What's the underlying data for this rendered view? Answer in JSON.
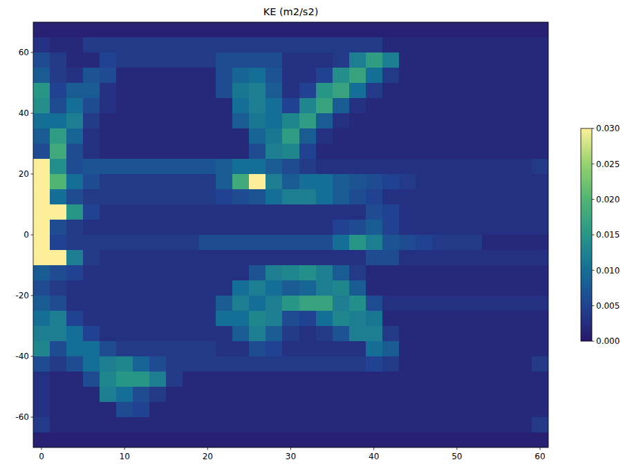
{
  "chart_data": {
    "type": "heatmap",
    "title": "KE (m2/s2)",
    "x": [
      0,
      2,
      4,
      6,
      8,
      10,
      12,
      14,
      16,
      18,
      20,
      22,
      24,
      26,
      28,
      30,
      32,
      34,
      36,
      38,
      40,
      42,
      44,
      46,
      48,
      50,
      52,
      54,
      56,
      58,
      60
    ],
    "y": [
      67.5,
      62.5,
      57.5,
      52.5,
      47.5,
      42.5,
      37.5,
      32.5,
      27.5,
      22.5,
      17.5,
      12.5,
      7.5,
      2.5,
      -2.5,
      -7.5,
      -12.5,
      -17.5,
      -22.5,
      -27.5,
      -32.5,
      -37.5,
      -42.5,
      -47.5,
      -52.5,
      -57.5,
      -62.5,
      -67.5
    ],
    "values": [
      [
        0.001,
        0.001,
        0.001,
        0.001,
        0.001,
        0.001,
        0.001,
        0.001,
        0.001,
        0.001,
        0.001,
        0.001,
        0.001,
        0.001,
        0.001,
        0.001,
        0.001,
        0.001,
        0.001,
        0.001,
        0.001,
        0.001,
        0.001,
        0.001,
        0.001,
        0.001,
        0.001,
        0.001,
        0.001,
        0.001,
        0.001
      ],
      [
        0.003,
        0.002,
        0.002,
        0.004,
        0.004,
        0.004,
        0.004,
        0.004,
        0.004,
        0.004,
        0.004,
        0.004,
        0.004,
        0.004,
        0.004,
        0.004,
        0.004,
        0.004,
        0.004,
        0.004,
        0.004,
        0.002,
        0.002,
        0.002,
        0.002,
        0.002,
        0.002,
        0.002,
        0.002,
        0.002,
        0.002
      ],
      [
        0.006,
        0.004,
        0.002,
        0.002,
        0.005,
        0.004,
        0.004,
        0.004,
        0.004,
        0.004,
        0.004,
        0.006,
        0.006,
        0.006,
        0.006,
        0.003,
        0.003,
        0.003,
        0.004,
        0.012,
        0.016,
        0.012,
        0.002,
        0.002,
        0.002,
        0.002,
        0.002,
        0.002,
        0.002,
        0.002,
        0.002
      ],
      [
        0.008,
        0.004,
        0.003,
        0.007,
        0.006,
        0.002,
        0.002,
        0.002,
        0.002,
        0.002,
        0.002,
        0.006,
        0.009,
        0.01,
        0.007,
        0.003,
        0.003,
        0.005,
        0.014,
        0.017,
        0.01,
        0.004,
        0.002,
        0.002,
        0.002,
        0.002,
        0.002,
        0.002,
        0.002,
        0.002,
        0.002
      ],
      [
        0.015,
        0.005,
        0.008,
        0.008,
        0.003,
        0.002,
        0.002,
        0.002,
        0.002,
        0.002,
        0.002,
        0.006,
        0.011,
        0.012,
        0.008,
        0.003,
        0.005,
        0.015,
        0.017,
        0.01,
        0.004,
        0.002,
        0.002,
        0.002,
        0.002,
        0.002,
        0.002,
        0.002,
        0.002,
        0.002,
        0.002
      ],
      [
        0.014,
        0.006,
        0.01,
        0.006,
        0.003,
        0.002,
        0.002,
        0.002,
        0.002,
        0.002,
        0.002,
        0.002,
        0.01,
        0.012,
        0.01,
        0.005,
        0.013,
        0.017,
        0.008,
        0.003,
        0.002,
        0.002,
        0.002,
        0.002,
        0.002,
        0.002,
        0.002,
        0.002,
        0.002,
        0.002,
        0.002
      ],
      [
        0.01,
        0.01,
        0.012,
        0.004,
        0.002,
        0.002,
        0.002,
        0.002,
        0.002,
        0.002,
        0.002,
        0.002,
        0.008,
        0.011,
        0.01,
        0.013,
        0.016,
        0.008,
        0.003,
        0.002,
        0.002,
        0.002,
        0.002,
        0.002,
        0.002,
        0.002,
        0.002,
        0.002,
        0.002,
        0.002,
        0.002
      ],
      [
        0.008,
        0.016,
        0.009,
        0.003,
        0.002,
        0.002,
        0.002,
        0.002,
        0.002,
        0.002,
        0.002,
        0.002,
        0.002,
        0.009,
        0.011,
        0.016,
        0.008,
        0.003,
        0.002,
        0.002,
        0.002,
        0.002,
        0.002,
        0.002,
        0.002,
        0.002,
        0.002,
        0.002,
        0.002,
        0.002,
        0.002
      ],
      [
        0.006,
        0.018,
        0.006,
        0.003,
        0.002,
        0.002,
        0.002,
        0.002,
        0.002,
        0.002,
        0.002,
        0.002,
        0.002,
        0.006,
        0.012,
        0.013,
        0.005,
        0.002,
        0.002,
        0.002,
        0.002,
        0.002,
        0.002,
        0.002,
        0.002,
        0.002,
        0.002,
        0.002,
        0.002,
        0.002,
        0.002
      ],
      [
        0.03,
        0.014,
        0.006,
        0.007,
        0.007,
        0.007,
        0.007,
        0.007,
        0.007,
        0.007,
        0.007,
        0.008,
        0.01,
        0.01,
        0.008,
        0.006,
        0.004,
        0.003,
        0.003,
        0.003,
        0.003,
        0.003,
        0.003,
        0.003,
        0.003,
        0.003,
        0.003,
        0.003,
        0.003,
        0.003,
        0.004
      ],
      [
        0.03,
        0.02,
        0.01,
        0.006,
        0.004,
        0.004,
        0.004,
        0.004,
        0.004,
        0.004,
        0.004,
        0.008,
        0.018,
        0.03,
        0.012,
        0.008,
        0.01,
        0.01,
        0.008,
        0.007,
        0.006,
        0.005,
        0.004,
        0.003,
        0.003,
        0.003,
        0.003,
        0.003,
        0.003,
        0.003,
        0.003
      ],
      [
        0.03,
        0.01,
        0.006,
        0.004,
        0.004,
        0.004,
        0.004,
        0.004,
        0.004,
        0.004,
        0.004,
        0.005,
        0.006,
        0.007,
        0.01,
        0.012,
        0.012,
        0.01,
        0.008,
        0.006,
        0.005,
        0.003,
        0.003,
        0.003,
        0.003,
        0.003,
        0.003,
        0.003,
        0.003,
        0.003,
        0.003
      ],
      [
        0.03,
        0.03,
        0.015,
        0.005,
        0.003,
        0.003,
        0.003,
        0.003,
        0.003,
        0.003,
        0.003,
        0.003,
        0.003,
        0.003,
        0.003,
        0.003,
        0.003,
        0.003,
        0.003,
        0.003,
        0.006,
        0.005,
        0.003,
        0.003,
        0.003,
        0.003,
        0.003,
        0.003,
        0.003,
        0.003,
        0.003
      ],
      [
        0.03,
        0.006,
        0.004,
        0.003,
        0.003,
        0.003,
        0.003,
        0.003,
        0.003,
        0.003,
        0.003,
        0.003,
        0.003,
        0.003,
        0.003,
        0.003,
        0.003,
        0.003,
        0.005,
        0.006,
        0.008,
        0.005,
        0.003,
        0.003,
        0.003,
        0.003,
        0.003,
        0.003,
        0.003,
        0.003,
        0.003
      ],
      [
        0.03,
        0.005,
        0.004,
        0.004,
        0.004,
        0.004,
        0.004,
        0.004,
        0.004,
        0.004,
        0.006,
        0.006,
        0.006,
        0.006,
        0.006,
        0.006,
        0.006,
        0.006,
        0.01,
        0.015,
        0.012,
        0.007,
        0.006,
        0.005,
        0.004,
        0.004,
        0.004,
        0.002,
        0.002,
        0.002,
        0.002
      ],
      [
        0.03,
        0.03,
        0.012,
        0.004,
        0.003,
        0.003,
        0.003,
        0.003,
        0.003,
        0.003,
        0.003,
        0.003,
        0.003,
        0.003,
        0.003,
        0.003,
        0.003,
        0.003,
        0.003,
        0.003,
        0.006,
        0.006,
        0.003,
        0.003,
        0.003,
        0.003,
        0.003,
        0.003,
        0.003,
        0.003,
        0.003
      ],
      [
        0.008,
        0.006,
        0.005,
        0.003,
        0.003,
        0.003,
        0.003,
        0.003,
        0.003,
        0.003,
        0.003,
        0.003,
        0.003,
        0.007,
        0.012,
        0.013,
        0.014,
        0.012,
        0.008,
        0.004,
        0.002,
        0.002,
        0.002,
        0.002,
        0.002,
        0.002,
        0.002,
        0.002,
        0.002,
        0.002,
        0.002
      ],
      [
        0.006,
        0.004,
        0.003,
        0.003,
        0.003,
        0.003,
        0.003,
        0.003,
        0.003,
        0.003,
        0.003,
        0.003,
        0.01,
        0.012,
        0.01,
        0.008,
        0.009,
        0.012,
        0.013,
        0.008,
        0.002,
        0.002,
        0.002,
        0.002,
        0.002,
        0.002,
        0.002,
        0.002,
        0.002,
        0.002,
        0.002
      ],
      [
        0.008,
        0.006,
        0.003,
        0.003,
        0.003,
        0.003,
        0.003,
        0.003,
        0.003,
        0.003,
        0.003,
        0.008,
        0.012,
        0.01,
        0.012,
        0.015,
        0.017,
        0.017,
        0.012,
        0.014,
        0.006,
        0.003,
        0.003,
        0.003,
        0.003,
        0.003,
        0.003,
        0.003,
        0.003,
        0.003,
        0.003
      ],
      [
        0.01,
        0.012,
        0.005,
        0.003,
        0.003,
        0.003,
        0.003,
        0.003,
        0.003,
        0.003,
        0.003,
        0.01,
        0.01,
        0.013,
        0.012,
        0.006,
        0.005,
        0.01,
        0.013,
        0.012,
        0.011,
        0.002,
        0.002,
        0.002,
        0.002,
        0.002,
        0.002,
        0.002,
        0.002,
        0.002,
        0.002
      ],
      [
        0.012,
        0.012,
        0.01,
        0.005,
        0.003,
        0.003,
        0.003,
        0.003,
        0.003,
        0.003,
        0.003,
        0.003,
        0.008,
        0.012,
        0.008,
        0.004,
        0.003,
        0.004,
        0.007,
        0.012,
        0.012,
        0.004,
        0.002,
        0.002,
        0.002,
        0.002,
        0.002,
        0.002,
        0.002,
        0.002,
        0.002
      ],
      [
        0.013,
        0.006,
        0.01,
        0.01,
        0.006,
        0.004,
        0.004,
        0.004,
        0.004,
        0.004,
        0.004,
        0.003,
        0.003,
        0.006,
        0.005,
        0.003,
        0.003,
        0.003,
        0.003,
        0.003,
        0.01,
        0.008,
        0.002,
        0.002,
        0.002,
        0.002,
        0.002,
        0.002,
        0.002,
        0.002,
        0.002
      ],
      [
        0.006,
        0.004,
        0.006,
        0.01,
        0.012,
        0.013,
        0.009,
        0.006,
        0.004,
        0.004,
        0.004,
        0.004,
        0.004,
        0.004,
        0.004,
        0.004,
        0.004,
        0.004,
        0.004,
        0.004,
        0.005,
        0.004,
        0.002,
        0.002,
        0.002,
        0.002,
        0.002,
        0.002,
        0.002,
        0.002,
        0.004
      ],
      [
        0.003,
        0.002,
        0.002,
        0.006,
        0.013,
        0.015,
        0.015,
        0.012,
        0.004,
        0.002,
        0.002,
        0.002,
        0.002,
        0.002,
        0.002,
        0.002,
        0.002,
        0.002,
        0.002,
        0.002,
        0.002,
        0.002,
        0.002,
        0.002,
        0.002,
        0.002,
        0.002,
        0.002,
        0.002,
        0.002,
        0.002
      ],
      [
        0.003,
        0.002,
        0.002,
        0.002,
        0.012,
        0.01,
        0.006,
        0.004,
        0.002,
        0.002,
        0.002,
        0.002,
        0.002,
        0.002,
        0.002,
        0.002,
        0.002,
        0.002,
        0.002,
        0.002,
        0.002,
        0.002,
        0.002,
        0.002,
        0.002,
        0.002,
        0.002,
        0.002,
        0.002,
        0.002,
        0.002
      ],
      [
        0.003,
        0.002,
        0.002,
        0.002,
        0.002,
        0.006,
        0.005,
        0.002,
        0.002,
        0.002,
        0.002,
        0.002,
        0.002,
        0.002,
        0.002,
        0.002,
        0.002,
        0.002,
        0.002,
        0.002,
        0.002,
        0.002,
        0.002,
        0.002,
        0.002,
        0.002,
        0.002,
        0.002,
        0.002,
        0.002,
        0.002
      ],
      [
        0.004,
        0.002,
        0.002,
        0.002,
        0.002,
        0.002,
        0.002,
        0.002,
        0.002,
        0.002,
        0.002,
        0.002,
        0.002,
        0.002,
        0.002,
        0.002,
        0.002,
        0.002,
        0.002,
        0.002,
        0.002,
        0.002,
        0.002,
        0.002,
        0.002,
        0.002,
        0.002,
        0.002,
        0.002,
        0.002,
        0.004
      ],
      [
        0.001,
        0.001,
        0.001,
        0.001,
        0.001,
        0.001,
        0.001,
        0.001,
        0.001,
        0.001,
        0.001,
        0.001,
        0.001,
        0.001,
        0.001,
        0.001,
        0.001,
        0.001,
        0.001,
        0.001,
        0.001,
        0.001,
        0.001,
        0.001,
        0.001,
        0.001,
        0.001,
        0.001,
        0.001,
        0.001,
        0.001
      ]
    ],
    "xlim": [
      -1,
      61
    ],
    "ylim": [
      -70,
      70
    ],
    "xticks": [
      0,
      10,
      20,
      30,
      40,
      50,
      60
    ],
    "yticks": [
      -60,
      -40,
      -20,
      0,
      20,
      40,
      60
    ],
    "colorbar_range": [
      0,
      0.03
    ],
    "colorbar_ticks": [
      {
        "value": 0,
        "label": "0.000"
      },
      {
        "value": 0.005,
        "label": "0.005"
      },
      {
        "value": 0.01,
        "label": "0.010"
      },
      {
        "value": 0.015,
        "label": "0.015"
      },
      {
        "value": 0.02,
        "label": "0.020"
      },
      {
        "value": 0.025,
        "label": "0.025"
      },
      {
        "value": 0.03,
        "label": "0.030"
      }
    ]
  }
}
